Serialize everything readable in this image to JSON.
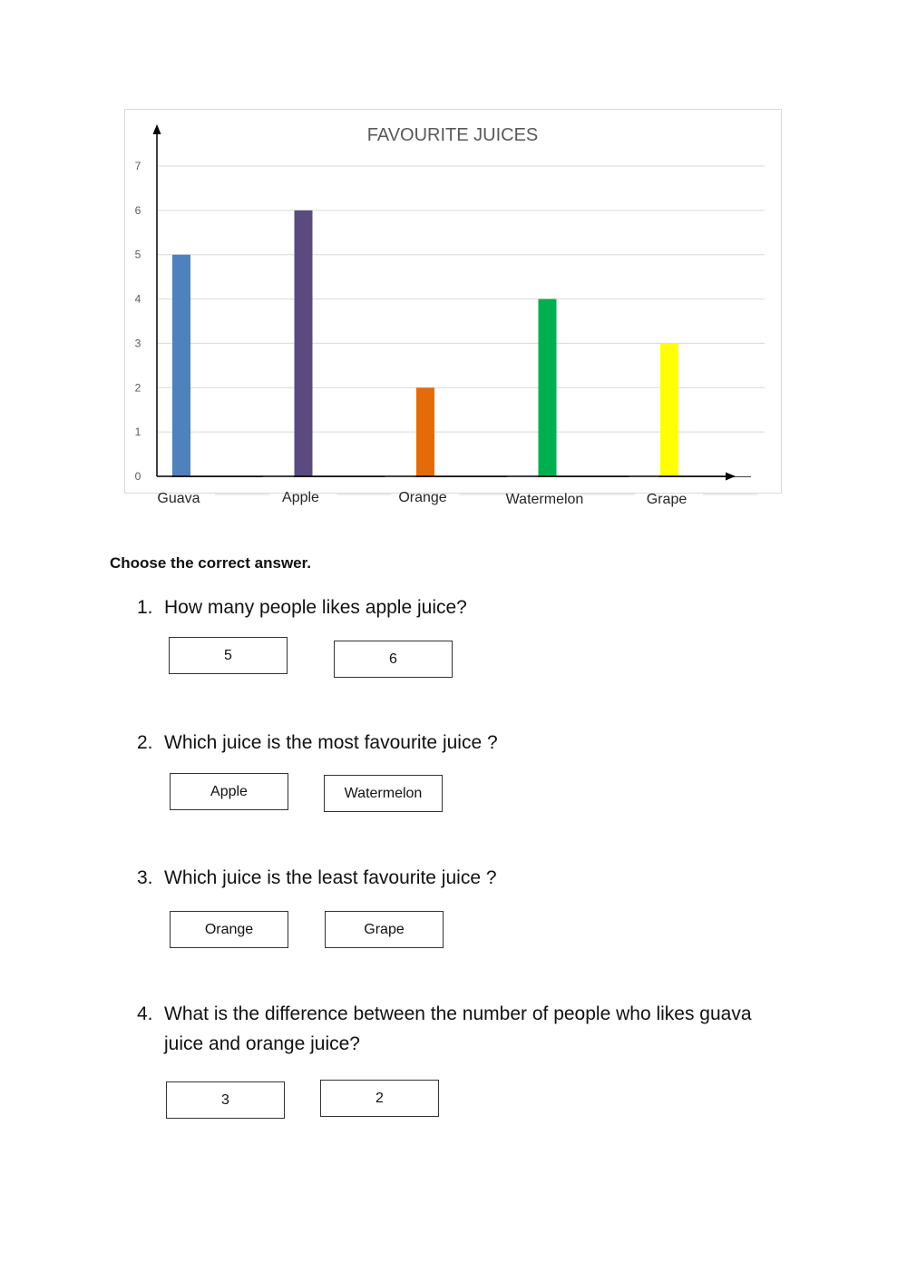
{
  "chart_data": {
    "type": "bar",
    "title": "FAVOURITE JUICES",
    "categories": [
      "Guava",
      "Apple",
      "Orange",
      "Watermelon",
      "Grape"
    ],
    "values": [
      5,
      6,
      2,
      4,
      3
    ],
    "bar_colors": [
      "#4F81BD",
      "#5B4A7E",
      "#E36C09",
      "#00B050",
      "#FFFF00"
    ],
    "ylim": [
      0,
      7
    ],
    "yticks": [
      "0",
      "1",
      "2",
      "3",
      "4",
      "5",
      "6",
      "7"
    ],
    "xlabel": "",
    "ylabel": "",
    "grid": true,
    "legend": "none"
  },
  "instructions": "Choose the correct answer.",
  "questions": [
    {
      "number": "1.",
      "text": "How many people likes apple juice?",
      "options": [
        "5",
        "6"
      ]
    },
    {
      "number": "2.",
      "text": "Which juice is the most favourite juice ?",
      "options": [
        "Apple",
        "Watermelon"
      ]
    },
    {
      "number": "3.",
      "text": "Which juice is the least favourite juice ?",
      "options": [
        "Orange",
        "Grape"
      ]
    },
    {
      "number": "4.",
      "text": "What is the difference between the number of people who likes guava juice and orange juice?",
      "options": [
        "3",
        "2"
      ]
    }
  ]
}
